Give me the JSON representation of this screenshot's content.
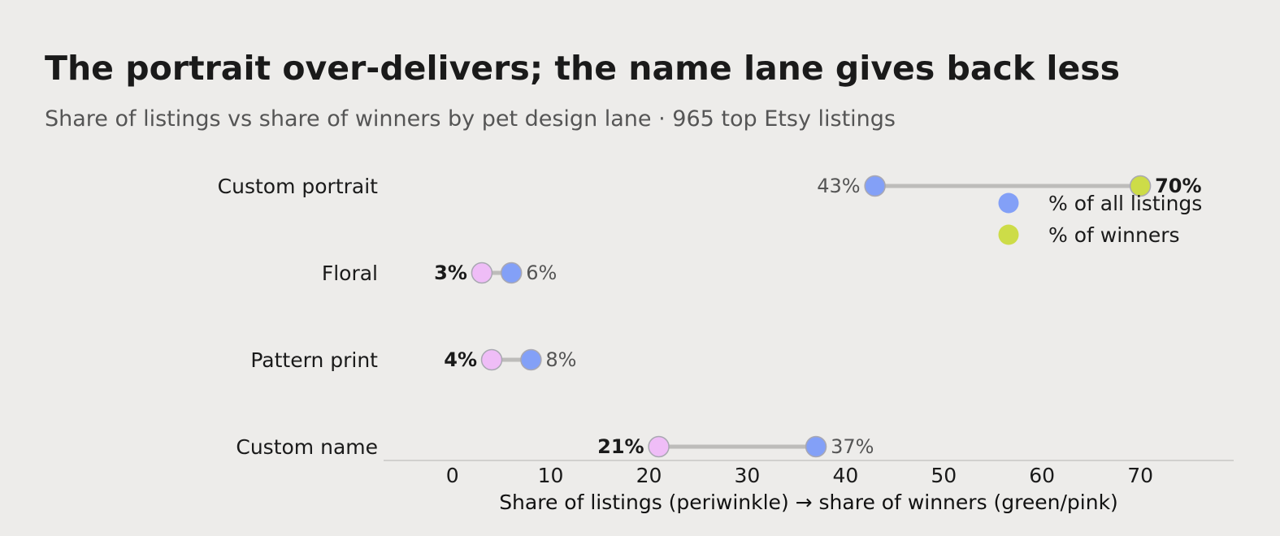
{
  "chart_data": {
    "type": "dumbbell",
    "title": "The portrait over-delivers; the name lane gives back less",
    "subtitle": "Share of listings vs share of winners by pet design lane · 965 top Etsy listings",
    "xlabel": "Share of listings (periwinkle)  →  share of winners (green/pink)",
    "xlim": [
      -7,
      79.5
    ],
    "xticks": [
      0,
      10,
      20,
      30,
      40,
      50,
      60,
      70
    ],
    "grid": false,
    "legend_position": "top-right",
    "colors": {
      "listings": "#83a0f7",
      "winners_over": "#cddc48",
      "winners_under": "#efbdf7",
      "connector": "#bdbcba",
      "marker_edge": "#a9a8b2"
    },
    "series": [
      {
        "name": "% of all listings",
        "color": "#83a0f7"
      },
      {
        "name": "% of winners",
        "color": "#cddc48"
      }
    ],
    "rows": [
      {
        "category": "Custom portrait",
        "listings": 43,
        "winners": 70,
        "listings_label": "43%",
        "winners_label": "70%"
      },
      {
        "category": "Floral",
        "listings": 6,
        "winners": 3,
        "listings_label": "6%",
        "winners_label": "3%"
      },
      {
        "category": "Pattern print",
        "listings": 8,
        "winners": 4,
        "listings_label": "8%",
        "winners_label": "4%"
      },
      {
        "category": "Custom name",
        "listings": 37,
        "winners": 21,
        "listings_label": "37%",
        "winners_label": "21%"
      }
    ]
  }
}
